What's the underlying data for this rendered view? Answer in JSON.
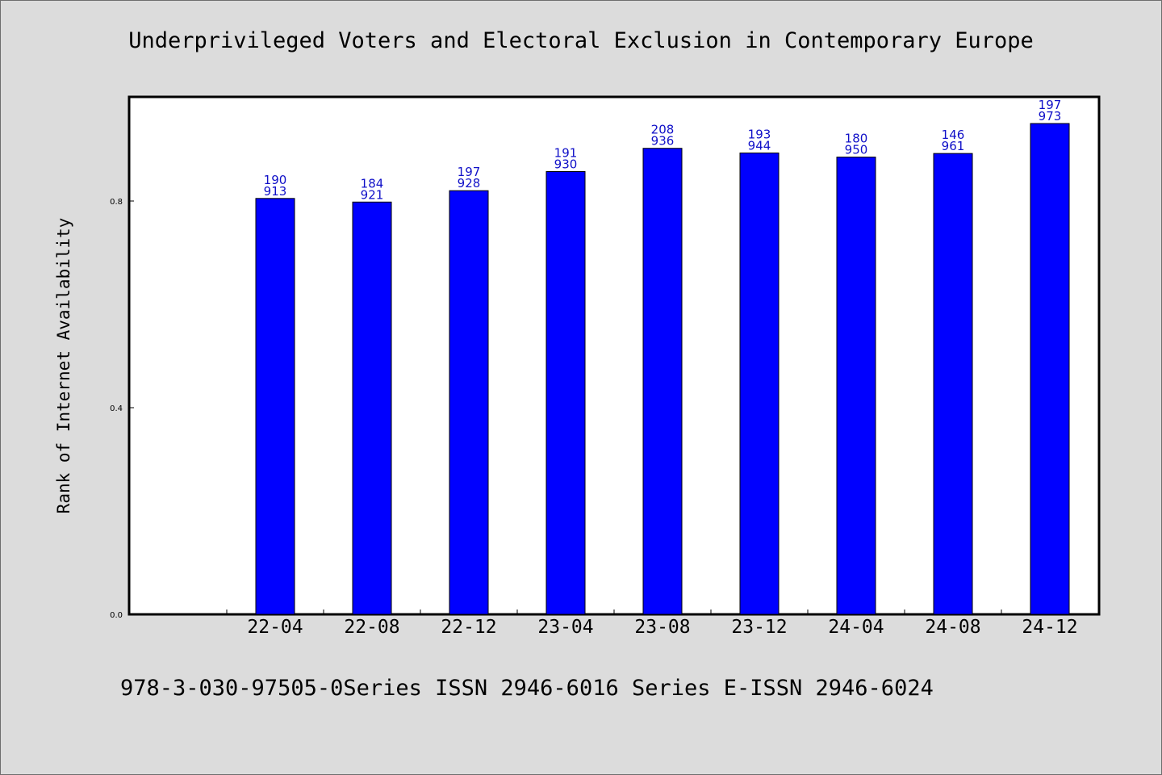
{
  "chart_data": {
    "type": "bar",
    "title": "Underprivileged Voters and Electoral Exclusion in Contemporary Europe",
    "xlabel": "",
    "ylabel": "Rank of Internet Availability",
    "categories": [
      "22-04",
      "22-08",
      "22-12",
      "23-04",
      "23-08",
      "23-12",
      "24-04",
      "24-08",
      "24-12"
    ],
    "values": [
      0.805,
      0.798,
      0.82,
      0.857,
      0.902,
      0.893,
      0.885,
      0.892,
      0.95
    ],
    "bar_labels": [
      [
        "190",
        "913"
      ],
      [
        "184",
        "921"
      ],
      [
        "197",
        "928"
      ],
      [
        "191",
        "930"
      ],
      [
        "208",
        "936"
      ],
      [
        "193",
        "944"
      ],
      [
        "180",
        "950"
      ],
      [
        "146",
        "961"
      ],
      [
        "197",
        "973"
      ]
    ],
    "yticks": [
      "0.0",
      "0.4",
      "0.8"
    ],
    "ytick_values": [
      0.0,
      0.4,
      0.8
    ],
    "ylim": [
      0,
      1.0
    ],
    "grid": false,
    "legend": "none",
    "bar_color": "#0000ff",
    "label_color": "#1010c8"
  },
  "footer": "978-3-030-97505-0Series ISSN 2946-6016 Series E-ISSN 2946-6024"
}
